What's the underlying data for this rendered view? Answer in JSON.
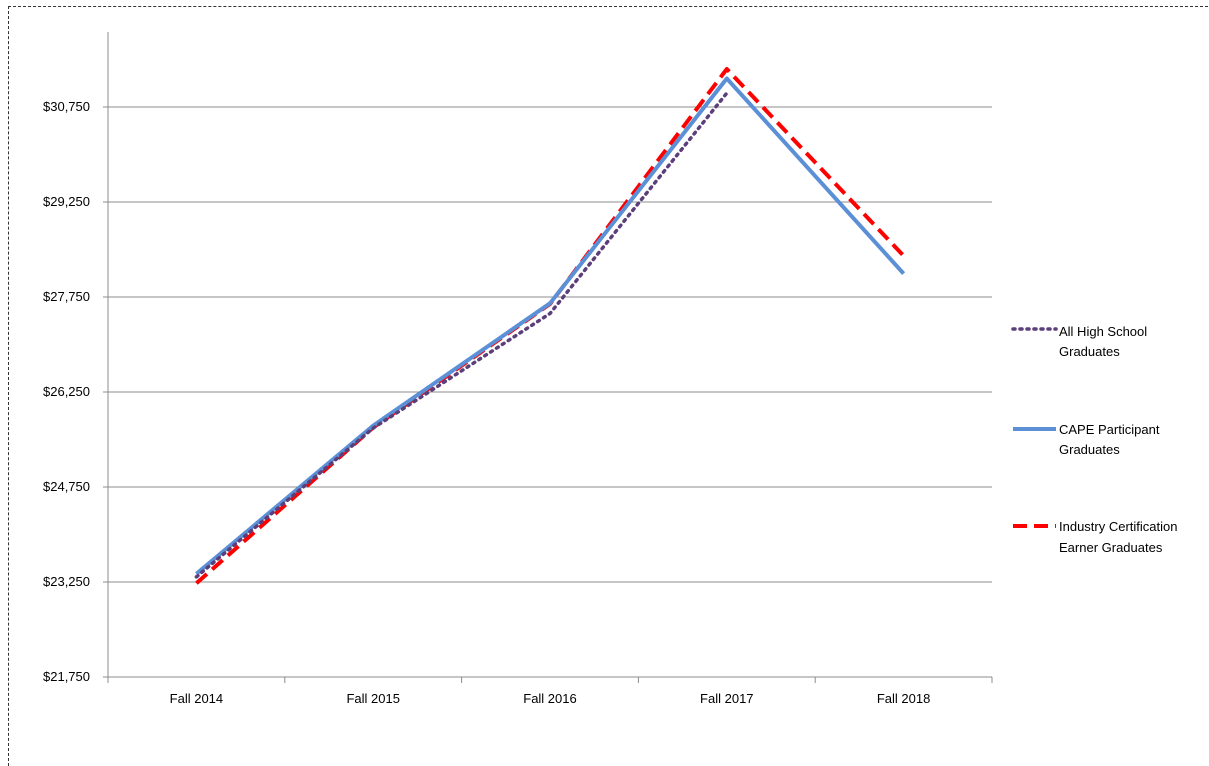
{
  "chart_data": {
    "type": "line",
    "title": "",
    "xlabel": "",
    "ylabel": "",
    "categories": [
      "Fall 2014",
      "Fall 2015",
      "Fall 2016",
      "Fall 2017",
      "Fall 2018"
    ],
    "ylim": [
      21750,
      32000
    ],
    "yticks": [
      "$21,750",
      "$23,250",
      "$24,750",
      "$26,250",
      "$27,750",
      "$29,250",
      "$30,750"
    ],
    "ytick_values": [
      21750,
      23250,
      24750,
      26250,
      27750,
      29250,
      30750
    ],
    "grid": true,
    "legend_position": "right",
    "series": [
      {
        "name": "All High School Graduates",
        "values": [
          23330,
          25680,
          27490,
          30970,
          null
        ],
        "color": "#5b3f7a",
        "style": "dotted"
      },
      {
        "name": "CAPE Participant Graduates",
        "values": [
          23380,
          25720,
          27650,
          31200,
          28120
        ],
        "color": "#5b8fd6",
        "style": "solid"
      },
      {
        "name": "Industry Certification Earner Graduates",
        "values": [
          23230,
          25690,
          27640,
          31350,
          28400
        ],
        "color": "#ff0000",
        "style": "dashed"
      }
    ]
  },
  "legend": [
    {
      "line1": "All High School",
      "line2": "Graduates"
    },
    {
      "line1": "CAPE Participant",
      "line2": "Graduates"
    },
    {
      "line1": "Industry Certification",
      "line2": "Earner Graduates"
    }
  ]
}
